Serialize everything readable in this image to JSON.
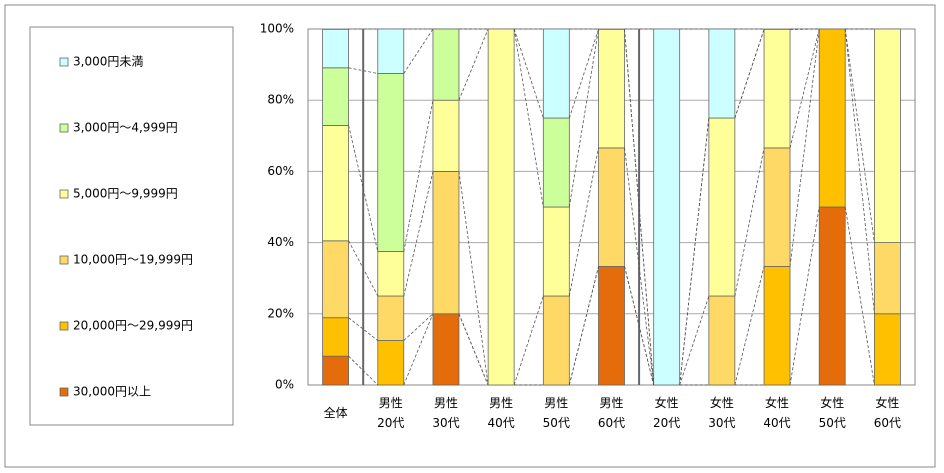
{
  "chart_data": {
    "type": "stacked-bar-percent",
    "categories": [
      "全体",
      "男性\n20代",
      "男性\n30代",
      "男性\n40代",
      "男性\n50代",
      "男性\n60代",
      "女性\n20代",
      "女性\n30代",
      "女性\n40代",
      "女性\n50代",
      "女性\n60代"
    ],
    "series": [
      {
        "name": "30,000円以上",
        "color": "#e46c0a",
        "values": [
          8.1,
          0,
          20,
          0,
          0,
          33.3,
          0,
          0,
          0,
          50,
          0
        ]
      },
      {
        "name": "20,000円～29,999円",
        "color": "#ffc000",
        "values": [
          10.8,
          12.5,
          0,
          0,
          0,
          0,
          0,
          0,
          33.3,
          50,
          20
        ]
      },
      {
        "name": "10,000円～19,999円",
        "color": "#ffd966",
        "values": [
          21.6,
          12.5,
          40,
          0,
          25,
          33.3,
          0,
          25,
          33.3,
          0,
          20
        ]
      },
      {
        "name": "5,000円～9,999円",
        "color": "#ffff99",
        "values": [
          32.4,
          12.5,
          20,
          100,
          25,
          33.3,
          0,
          50,
          33.3,
          0,
          60
        ]
      },
      {
        "name": "3,000円～4,999円",
        "color": "#ccff99",
        "values": [
          16.2,
          50,
          20,
          0,
          25,
          0,
          0,
          0,
          0,
          0,
          0
        ]
      },
      {
        "name": "3,000円未満",
        "color": "#ccffff",
        "values": [
          10.8,
          12.5,
          0,
          0,
          25,
          0,
          100,
          25,
          0,
          0,
          0
        ]
      }
    ],
    "ylim": [
      0,
      100
    ],
    "yticks": [
      {
        "value": 0,
        "label": "0%"
      },
      {
        "value": 20,
        "label": "20%"
      },
      {
        "value": 40,
        "label": "40%"
      },
      {
        "value": 60,
        "label": "60%"
      },
      {
        "value": 80,
        "label": "80%"
      },
      {
        "value": 100,
        "label": "100%"
      }
    ],
    "grid": true
  }
}
